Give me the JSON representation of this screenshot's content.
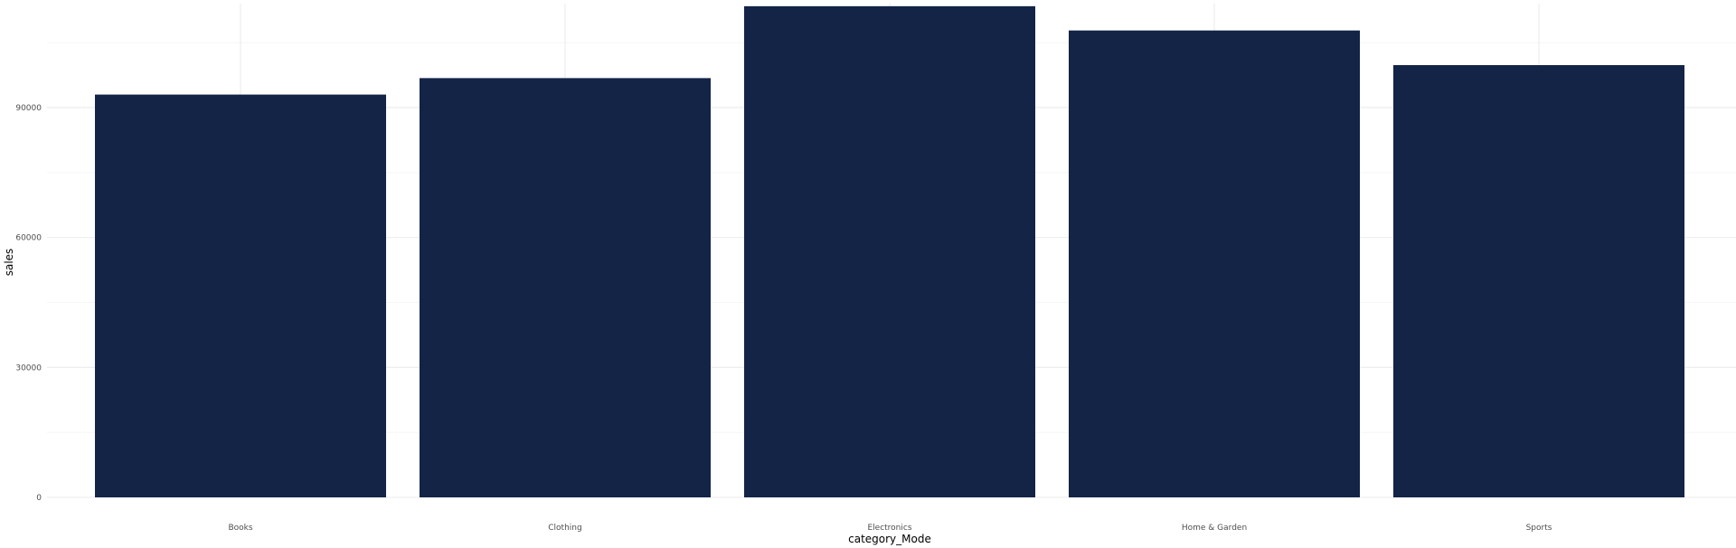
{
  "chart_data": {
    "type": "bar",
    "categories": [
      "Books",
      "Clothing",
      "Electronics",
      "Home & Garden",
      "Sports"
    ],
    "values": [
      93000,
      96800,
      113400,
      107800,
      99800
    ],
    "xlabel": "category_Mode",
    "ylabel": "sales",
    "ylim": [
      0,
      114000
    ],
    "yticks": [
      0,
      30000,
      60000,
      90000
    ],
    "ytick_labels": [
      "0",
      "30000",
      "60000",
      "90000"
    ],
    "grid": true,
    "legend": "none",
    "bar_color": "#132447",
    "grid_color": "#ebebeb"
  }
}
